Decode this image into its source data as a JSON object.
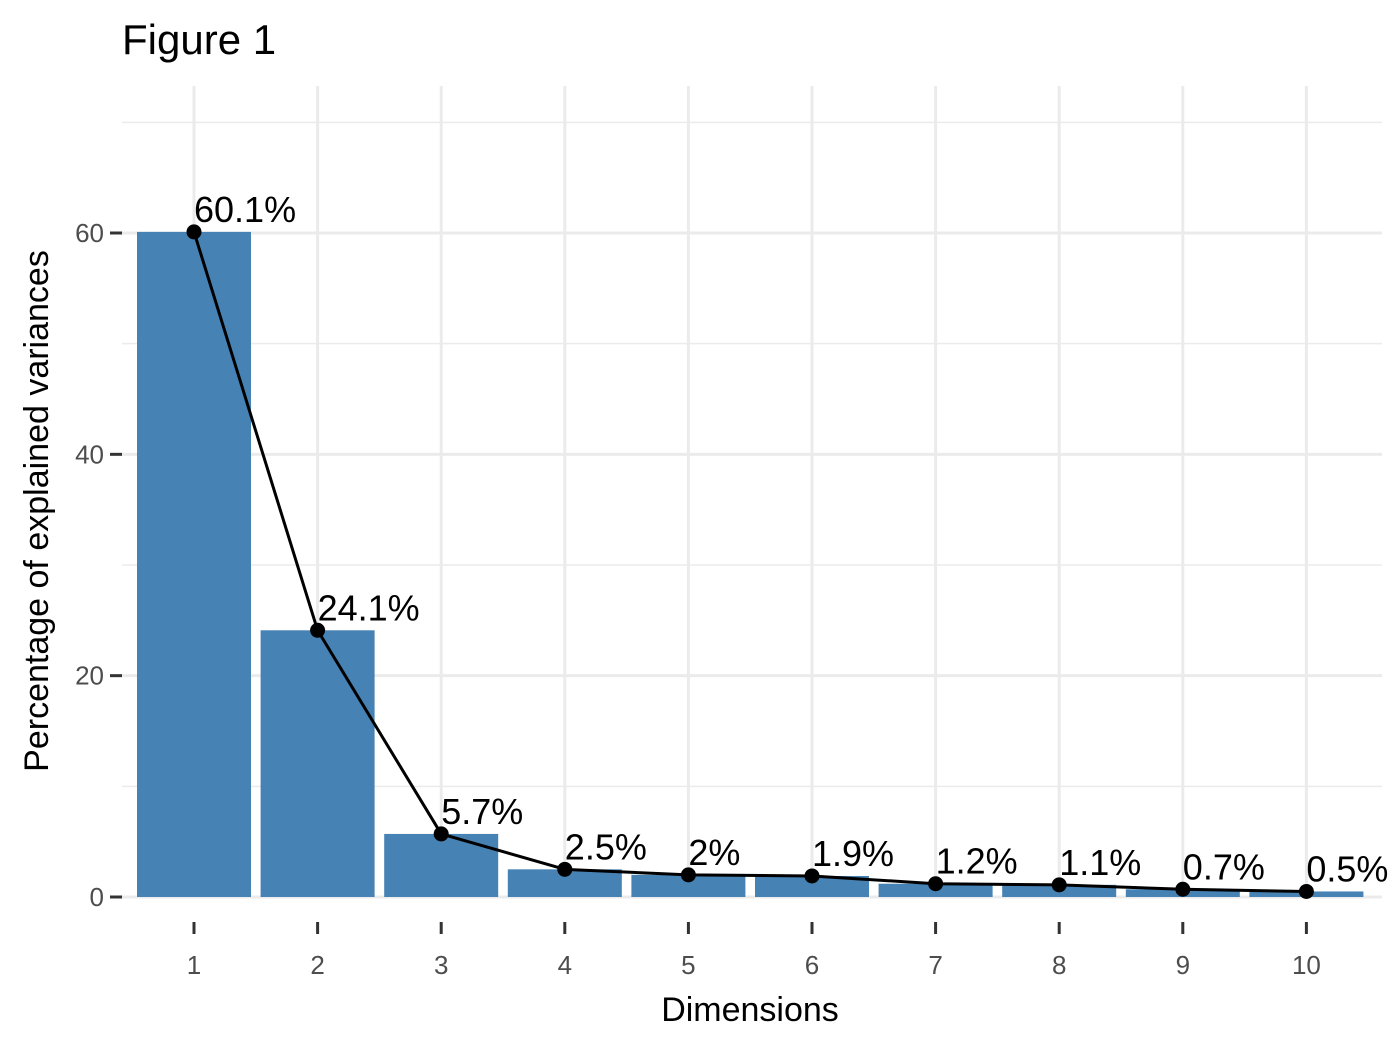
{
  "chart_data": {
    "type": "bar",
    "title": "Figure 1",
    "xlabel": "Dimensions",
    "ylabel": "Percentage of explained variances",
    "categories": [
      "1",
      "2",
      "3",
      "4",
      "5",
      "6",
      "7",
      "8",
      "9",
      "10"
    ],
    "values": [
      60.1,
      24.1,
      5.7,
      2.5,
      2.0,
      1.9,
      1.2,
      1.1,
      0.7,
      0.5
    ],
    "data_labels": [
      "60.1%",
      "24.1%",
      "5.7%",
      "2.5%",
      "2%",
      "1.9%",
      "1.2%",
      "1.1%",
      "0.7%",
      "0.5%"
    ],
    "y_ticks": [
      0,
      20,
      40,
      60
    ],
    "ylim": [
      0,
      72
    ],
    "grid": true,
    "overlay_line": true,
    "bar_color": "#4682b4",
    "line_color": "#000000",
    "grid_color": "#ebebeb",
    "tick_label_color": "#4d4d4d"
  }
}
